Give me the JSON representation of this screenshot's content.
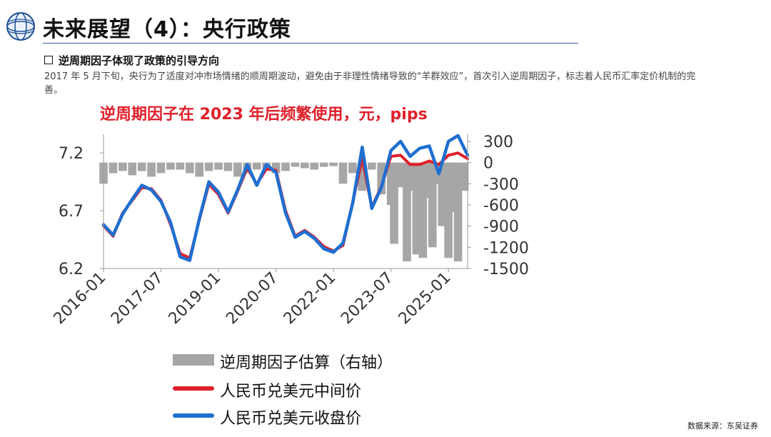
{
  "page": {
    "title": "未来展望（4）：央行政策",
    "section_heading": "逆周期因子体现了政策的引导方向",
    "paragraph": "2017 年 5 月下旬，央行为了适度对冲市场情绪的顺周期波动，避免由于非理性情绪导致的“羊群效应”，首次引入逆周期因子，标志着人民币汇率定价机制的完善。",
    "source": "数据来源：东吴证券"
  },
  "colors": {
    "title_rule": "#2c5aa0",
    "chart_title": "#e0202a",
    "gray_series": "#a6a6a6",
    "red_series": "#e0202a",
    "blue_series": "#1f6fd1"
  },
  "chart_data": {
    "type": "line",
    "title": "逆周期因子在 2023 年后频繁使用，元，pips",
    "x_tick_labels": [
      "2016-01",
      "2017-07",
      "2019-01",
      "2020-07",
      "2022-01",
      "2023-07",
      "2025-01"
    ],
    "x_ticks": [
      "2016-01",
      "2017-07",
      "2019-01",
      "2020-07",
      "2022-01",
      "2023-07",
      "2025-01"
    ],
    "x_range": [
      "2016-01",
      "2025-07"
    ],
    "y_left": {
      "lim": [
        6.2,
        7.3
      ],
      "ticks": [
        6.2,
        6.7,
        7.2
      ],
      "tick_labels": [
        "6.2",
        "6.7",
        "7.2"
      ]
    },
    "y_right": {
      "lim": [
        -1500,
        300
      ],
      "ticks": [
        300,
        0,
        -300,
        -600,
        -900,
        -1200,
        -1500
      ],
      "tick_labels": [
        "300",
        "0",
        "-300",
        "-600",
        "-900",
        "-1200",
        "-1500"
      ]
    },
    "grid": false,
    "legend_position": "bottom",
    "series": [
      {
        "name": "逆周期因子估算（右轴）",
        "axis": "right",
        "style": "bar",
        "x": [
          "2016-01",
          "2016-04",
          "2016-07",
          "2016-10",
          "2017-01",
          "2017-04",
          "2017-07",
          "2017-10",
          "2018-01",
          "2018-04",
          "2018-07",
          "2018-10",
          "2019-01",
          "2019-04",
          "2019-07",
          "2019-10",
          "2020-01",
          "2020-04",
          "2020-07",
          "2020-10",
          "2021-01",
          "2021-04",
          "2021-07",
          "2021-10",
          "2022-01",
          "2022-04",
          "2022-07",
          "2022-10",
          "2023-01",
          "2023-04",
          "2023-07",
          "2023-08",
          "2023-10",
          "2023-12",
          "2024-01",
          "2024-03",
          "2024-05",
          "2024-06",
          "2024-08",
          "2024-10",
          "2024-11",
          "2025-01",
          "2025-02",
          "2025-04",
          "2025-06"
        ],
        "values": [
          -300,
          -150,
          -120,
          -180,
          -120,
          -200,
          -150,
          -100,
          -100,
          -150,
          -200,
          -120,
          -100,
          -120,
          -200,
          -150,
          -100,
          -80,
          -150,
          -120,
          -60,
          -80,
          -100,
          -60,
          -50,
          -300,
          -150,
          -400,
          -100,
          -450,
          -600,
          -1150,
          -350,
          -1400,
          -400,
          -1300,
          -1350,
          -500,
          -1200,
          -300,
          -900,
          -1350,
          -700,
          -1400,
          -400
        ]
      },
      {
        "name": "人民币兑美元中间价",
        "axis": "left",
        "style": "line",
        "x": [
          "2016-01",
          "2016-04",
          "2016-07",
          "2016-10",
          "2017-01",
          "2017-04",
          "2017-07",
          "2017-10",
          "2018-01",
          "2018-04",
          "2018-07",
          "2018-10",
          "2019-01",
          "2019-04",
          "2019-07",
          "2019-10",
          "2020-01",
          "2020-04",
          "2020-07",
          "2020-10",
          "2021-01",
          "2021-04",
          "2021-07",
          "2021-10",
          "2022-01",
          "2022-04",
          "2022-07",
          "2022-10",
          "2023-01",
          "2023-04",
          "2023-07",
          "2023-10",
          "2024-01",
          "2024-04",
          "2024-07",
          "2024-10",
          "2025-01",
          "2025-04",
          "2025-07"
        ],
        "values": [
          6.57,
          6.48,
          6.68,
          6.79,
          6.9,
          6.89,
          6.79,
          6.58,
          6.33,
          6.29,
          6.62,
          6.93,
          6.84,
          6.68,
          6.87,
          7.07,
          6.93,
          7.06,
          7.05,
          6.7,
          6.48,
          6.53,
          6.47,
          6.39,
          6.35,
          6.4,
          6.77,
          7.15,
          6.73,
          6.91,
          7.17,
          7.18,
          7.1,
          7.1,
          7.13,
          7.1,
          7.18,
          7.2,
          7.15
        ]
      },
      {
        "name": "人民币兑美元收盘价",
        "axis": "left",
        "style": "line",
        "x": [
          "2016-01",
          "2016-04",
          "2016-07",
          "2016-10",
          "2017-01",
          "2017-04",
          "2017-07",
          "2017-10",
          "2018-01",
          "2018-04",
          "2018-07",
          "2018-10",
          "2019-01",
          "2019-04",
          "2019-07",
          "2019-10",
          "2020-01",
          "2020-04",
          "2020-07",
          "2020-10",
          "2021-01",
          "2021-04",
          "2021-07",
          "2021-10",
          "2022-01",
          "2022-04",
          "2022-07",
          "2022-10",
          "2023-01",
          "2023-04",
          "2023-07",
          "2023-10",
          "2024-01",
          "2024-04",
          "2024-07",
          "2024-10",
          "2025-01",
          "2025-04",
          "2025-07"
        ],
        "values": [
          6.58,
          6.49,
          6.67,
          6.8,
          6.92,
          6.88,
          6.78,
          6.6,
          6.3,
          6.27,
          6.63,
          6.95,
          6.86,
          6.69,
          6.88,
          7.1,
          6.92,
          7.1,
          7.03,
          6.68,
          6.47,
          6.52,
          6.46,
          6.37,
          6.34,
          6.42,
          6.76,
          7.25,
          6.72,
          6.9,
          7.22,
          7.3,
          7.17,
          7.24,
          7.26,
          7.02,
          7.3,
          7.35,
          7.18
        ]
      }
    ]
  }
}
